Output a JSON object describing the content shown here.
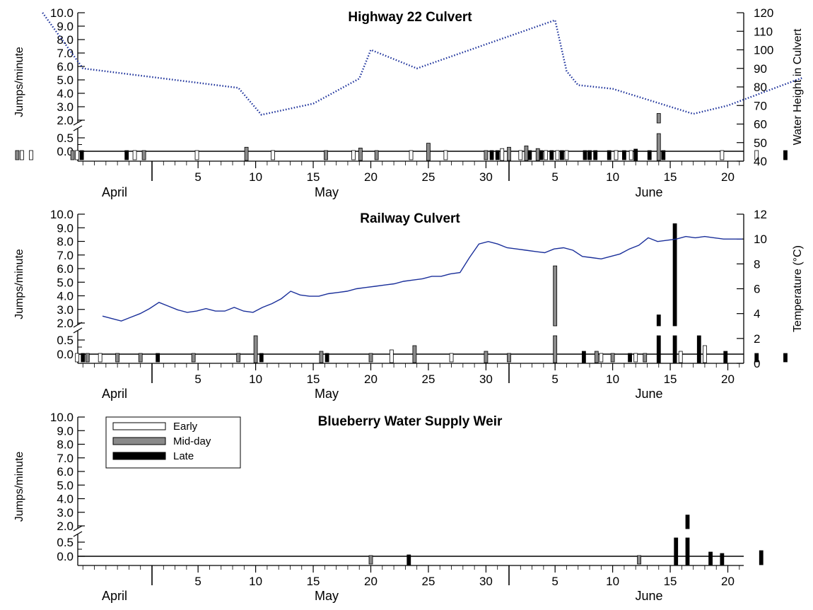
{
  "chart_data": [
    {
      "type": "bar",
      "title": "Highway 22 Culvert",
      "ylabel": "Jumps/minute",
      "ylabel_right": "Water Height in Culvert",
      "y_ticks_upper": [
        "10.0",
        "9.0",
        "8.0",
        "7.0",
        "6.0",
        "5.0",
        "4.0",
        "3.0",
        "2.0"
      ],
      "y_ticks_lower": [
        "0.5",
        "0.0"
      ],
      "y_ticks_right": [
        "120",
        "110",
        "100",
        "90",
        "80",
        "70",
        "60",
        "50",
        "40"
      ],
      "x_ticks": [
        "5",
        "10",
        "15",
        "20",
        "25",
        "30",
        "5",
        "10",
        "15",
        "20"
      ],
      "months": [
        "April",
        "May",
        "June"
      ],
      "line": {
        "name": "Water Height in Culvert",
        "style": "dotted",
        "color": "#1a2f9a",
        "x": [
          -3.5,
          0,
          13.5,
          15.5,
          20,
          24,
          25,
          29,
          41,
          42,
          43,
          46,
          53,
          56,
          62.5
        ],
        "y": [
          120,
          90,
          79.5,
          65,
          71,
          84.5,
          100,
          90,
          116,
          88.5,
          81,
          79,
          65.5,
          70,
          85
        ]
      },
      "bars": [
        {
          "x": -5.7,
          "series": "Mid-day",
          "value": 0.0
        },
        {
          "x": -5.3,
          "series": "Early",
          "value": 0.0
        },
        {
          "x": -4.5,
          "series": "Early",
          "value": 0.0
        },
        {
          "x": -0.9,
          "series": "Mid-day",
          "value": 0.0
        },
        {
          "x": -0.5,
          "series": "Early",
          "value": 0.0
        },
        {
          "x": -0.1,
          "series": "Late",
          "value": 0.0
        },
        {
          "x": 3.8,
          "series": "Late",
          "value": 0.0
        },
        {
          "x": 4.5,
          "series": "Early",
          "value": 0.0
        },
        {
          "x": 5.3,
          "series": "Mid-day",
          "value": 0.0
        },
        {
          "x": 9.9,
          "series": "Early",
          "value": 0.0
        },
        {
          "x": 14.2,
          "series": "Mid-day",
          "value": 0.15
        },
        {
          "x": 16.5,
          "series": "Early",
          "value": 0.0
        },
        {
          "x": 21.1,
          "series": "Mid-day",
          "value": 0.0
        },
        {
          "x": 23.5,
          "series": "Early",
          "value": 0.0
        },
        {
          "x": 24.1,
          "series": "Mid-day",
          "value": 0.12
        },
        {
          "x": 25.5,
          "series": "Mid-day",
          "value": 0.0
        },
        {
          "x": 28.5,
          "series": "Early",
          "value": 0.0
        },
        {
          "x": 30.0,
          "series": "Mid-day",
          "value": 0.3
        },
        {
          "x": 31.5,
          "series": "Early",
          "value": 0.0
        },
        {
          "x": 35.0,
          "series": "Mid-day",
          "value": 0.0
        },
        {
          "x": 35.5,
          "series": "Late",
          "value": 0.0
        },
        {
          "x": 36.0,
          "series": "Late",
          "value": 0.0
        },
        {
          "x": 36.4,
          "series": "Early",
          "value": 0.1
        },
        {
          "x": 37.0,
          "series": "Mid-day",
          "value": 0.15
        },
        {
          "x": 38.0,
          "series": "Early",
          "value": 0.0
        },
        {
          "x": 38.5,
          "series": "Mid-day",
          "value": 0.2
        },
        {
          "x": 38.8,
          "series": "Late",
          "value": 0.0
        },
        {
          "x": 39.5,
          "series": "Mid-day",
          "value": 0.1
        },
        {
          "x": 39.8,
          "series": "Late",
          "value": 0.0
        },
        {
          "x": 40.2,
          "series": "Early",
          "value": 0.0
        },
        {
          "x": 40.7,
          "series": "Late",
          "value": 0.0
        },
        {
          "x": 41.2,
          "series": "Early",
          "value": 0.0
        },
        {
          "x": 41.6,
          "series": "Late",
          "value": 0.0
        },
        {
          "x": 42.0,
          "series": "Early",
          "value": 0.0
        },
        {
          "x": 43.6,
          "series": "Late",
          "value": 0.0
        },
        {
          "x": 44.0,
          "series": "Late",
          "value": 0.0
        },
        {
          "x": 44.5,
          "series": "Late",
          "value": 0.0
        },
        {
          "x": 45.7,
          "series": "Late",
          "value": 0.0
        },
        {
          "x": 46.3,
          "series": "Early",
          "value": 0.0
        },
        {
          "x": 47.0,
          "series": "Late",
          "value": 0.0
        },
        {
          "x": 47.6,
          "series": "Early",
          "value": 0.0
        },
        {
          "x": 48.0,
          "series": "Late",
          "value": 0.08
        },
        {
          "x": 49.2,
          "series": "Late",
          "value": 0.0
        },
        {
          "x": 50.0,
          "series": "Mid-day",
          "value": 2.5
        },
        {
          "x": 50.4,
          "series": "Late",
          "value": 0.0
        },
        {
          "x": 55.5,
          "series": "Early",
          "value": 0.0
        },
        {
          "x": 58.5,
          "series": "Early",
          "value": 0.0
        },
        {
          "x": 61.0,
          "series": "Late",
          "value": 0.0
        }
      ]
    },
    {
      "type": "bar",
      "title": "Railway Culvert",
      "ylabel": "Jumps/minute",
      "ylabel_right": "Temperature (°C)",
      "y_ticks_upper": [
        "10.0",
        "9.0",
        "8.0",
        "7.0",
        "6.0",
        "5.0",
        "4.0",
        "3.0",
        "2.0"
      ],
      "y_ticks_lower": [
        "0.5",
        "0.0"
      ],
      "y_ticks_right": [
        "12",
        "10",
        "8",
        "6",
        "4",
        "2",
        "0"
      ],
      "x_ticks": [
        "5",
        "10",
        "15",
        "20",
        "25",
        "30",
        "5",
        "10",
        "15",
        "20"
      ],
      "months": [
        "April",
        "May",
        "June"
      ],
      "line": {
        "name": "Temperature",
        "style": "solid",
        "color": "#1a2f9a",
        "x": [
          -4,
          -3,
          -2,
          -1,
          0,
          1,
          2,
          3,
          4,
          5,
          6,
          7,
          8,
          9,
          10,
          11,
          12,
          13,
          14,
          15,
          16,
          17,
          18,
          19,
          20,
          21,
          22,
          23,
          24,
          25,
          26,
          27,
          28,
          29,
          30,
          31,
          32,
          33,
          34,
          35,
          36,
          37,
          38,
          39,
          40,
          41,
          42,
          43,
          44,
          45,
          46,
          47,
          48,
          49,
          50,
          51,
          52,
          53,
          54,
          55,
          56,
          57,
          58,
          59,
          60,
          61,
          62,
          63,
          64
        ],
        "y": [
          3.8,
          3.6,
          3.4,
          3.7,
          4.0,
          4.4,
          4.9,
          4.6,
          4.3,
          4.1,
          4.2,
          4.4,
          4.2,
          4.2,
          4.5,
          4.2,
          4.1,
          4.5,
          4.8,
          5.2,
          5.8,
          5.5,
          5.4,
          5.4,
          5.6,
          5.7,
          5.8,
          6.0,
          6.1,
          6.2,
          6.3,
          6.4,
          6.6,
          6.7,
          6.8,
          7.0,
          7.0,
          7.2,
          7.3,
          8.5,
          9.6,
          9.8,
          9.6,
          9.3,
          9.2,
          9.1,
          9.0,
          8.9,
          9.2,
          9.3,
          9.1,
          8.6,
          8.5,
          8.4,
          8.6,
          8.8,
          9.2,
          9.5,
          10.1,
          9.8,
          9.9,
          10.0,
          10.2,
          10.1,
          10.2,
          10.1,
          10.0,
          10.0,
          10.0
        ],
        "range": [
          0,
          12
        ]
      },
      "bars": [
        {
          "x": -0.5,
          "series": "Early",
          "value": 0.0
        },
        {
          "x": 0.0,
          "series": "Late",
          "value": 0.0
        },
        {
          "x": 0.4,
          "series": "Mid-day",
          "value": 0.0
        },
        {
          "x": 1.5,
          "series": "Early",
          "value": 0.0
        },
        {
          "x": 3.0,
          "series": "Mid-day",
          "value": 0.0
        },
        {
          "x": 5.0,
          "series": "Mid-day",
          "value": 0.0
        },
        {
          "x": 6.5,
          "series": "Late",
          "value": 0.0
        },
        {
          "x": 9.6,
          "series": "Mid-day",
          "value": 0.0
        },
        {
          "x": 13.5,
          "series": "Mid-day",
          "value": 0.0
        },
        {
          "x": 15.0,
          "series": "Mid-day",
          "value": 0.6
        },
        {
          "x": 15.5,
          "series": "Late",
          "value": 0.0
        },
        {
          "x": 20.7,
          "series": "Mid-day",
          "value": 0.1
        },
        {
          "x": 21.2,
          "series": "Late",
          "value": 0.0
        },
        {
          "x": 25.0,
          "series": "Mid-day",
          "value": 0.0
        },
        {
          "x": 26.8,
          "series": "Early",
          "value": 0.15
        },
        {
          "x": 28.8,
          "series": "Mid-day",
          "value": 0.3
        },
        {
          "x": 32.0,
          "series": "Early",
          "value": 0.0
        },
        {
          "x": 35.0,
          "series": "Mid-day",
          "value": 0.1
        },
        {
          "x": 37.0,
          "series": "Mid-day",
          "value": 0.0
        },
        {
          "x": 41.0,
          "series": "Mid-day",
          "value": 6.2
        },
        {
          "x": 43.5,
          "series": "Late",
          "value": 0.1
        },
        {
          "x": 44.6,
          "series": "Mid-day",
          "value": 0.1
        },
        {
          "x": 45.0,
          "series": "Early",
          "value": 0.0
        },
        {
          "x": 46.0,
          "series": "Mid-day",
          "value": 0.0
        },
        {
          "x": 47.5,
          "series": "Late",
          "value": 0.0
        },
        {
          "x": 48.0,
          "series": "Early",
          "value": 0.0
        },
        {
          "x": 48.8,
          "series": "Mid-day",
          "value": 0.0
        },
        {
          "x": 50.0,
          "series": "Late",
          "value": 2.6
        },
        {
          "x": 51.4,
          "series": "Late",
          "value": 9.3
        },
        {
          "x": 51.9,
          "series": "Early",
          "value": 0.1
        },
        {
          "x": 53.5,
          "series": "Late",
          "value": 0.6
        },
        {
          "x": 54.0,
          "series": "Early",
          "value": 0.3
        },
        {
          "x": 55.8,
          "series": "Late",
          "value": 0.1
        },
        {
          "x": 58.5,
          "series": "Late",
          "value": 0.0
        },
        {
          "x": 61.0,
          "series": "Late",
          "value": 0.0
        },
        {
          "x": 63.7,
          "series": "Late",
          "value": 0.1
        }
      ]
    },
    {
      "type": "bar",
      "title": "Blueberry Water Supply Weir",
      "ylabel": "Jumps/minute",
      "y_ticks_upper": [
        "10.0",
        "9.0",
        "8.0",
        "7.0",
        "6.0",
        "5.0",
        "4.0",
        "3.0",
        "2.0"
      ],
      "y_ticks_lower": [
        "0.5",
        "0.0"
      ],
      "x_ticks": [
        "5",
        "10",
        "15",
        "20",
        "25",
        "30",
        "5",
        "10",
        "15",
        "20"
      ],
      "months": [
        "April",
        "May",
        "June"
      ],
      "legend": {
        "items": [
          {
            "label": "Early",
            "color": "#ffffff"
          },
          {
            "label": "Mid-day",
            "color": "#8a8a8a"
          },
          {
            "label": "Late",
            "color": "#000000"
          }
        ]
      },
      "bars": [
        {
          "x": 25.0,
          "series": "Mid-day",
          "value": 0.0
        },
        {
          "x": 28.3,
          "series": "Late",
          "value": 0.05
        },
        {
          "x": 48.3,
          "series": "Mid-day",
          "value": 0.0
        },
        {
          "x": 51.5,
          "series": "Late",
          "value": 1.5
        },
        {
          "x": 52.5,
          "series": "Late",
          "value": 2.8
        },
        {
          "x": 54.5,
          "series": "Late",
          "value": 0.15
        },
        {
          "x": 55.5,
          "series": "Late",
          "value": 0.1
        },
        {
          "x": 58.9,
          "series": "Late",
          "value": 0.2
        }
      ]
    }
  ],
  "series_colors": {
    "Early": "#ffffff",
    "Mid-day": "#8a8a8a",
    "Late": "#000000"
  }
}
